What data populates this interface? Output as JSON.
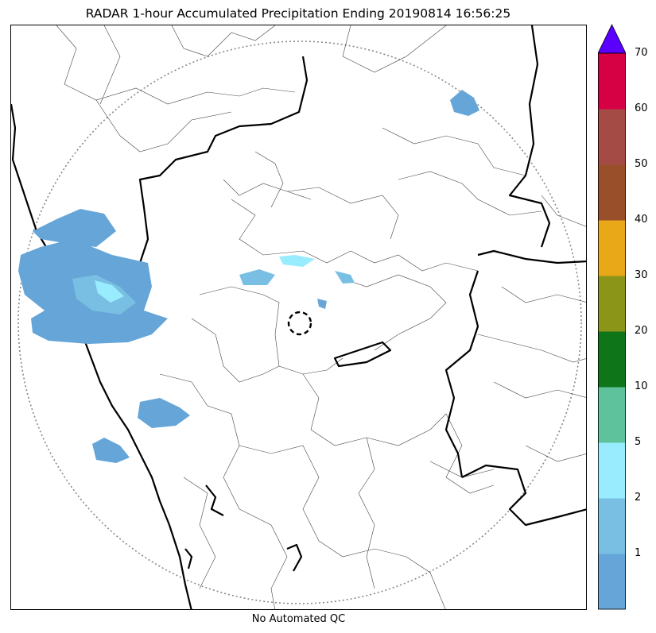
{
  "title": "RADAR 1-hour Accumulated Precipitation Ending 20190814 16:56:25",
  "footer_note": "No Automated QC",
  "colorbar": {
    "ticks": [
      "1",
      "2",
      "5",
      "10",
      "20",
      "30",
      "40",
      "50",
      "60",
      "70"
    ],
    "bins": [
      {
        "color": "#65a5d7"
      },
      {
        "color": "#78bfe3"
      },
      {
        "color": "#98ecfd"
      },
      {
        "color": "#5ec39c"
      },
      {
        "color": "#0e7519"
      },
      {
        "color": "#8b9518"
      },
      {
        "color": "#e9a818"
      },
      {
        "color": "#984f2a"
      },
      {
        "color": "#a54b45"
      },
      {
        "color": "#d60045"
      }
    ],
    "extend_color": "#5a00ff"
  },
  "map_style": {
    "coastline_color": "#000000",
    "district_color": "#444444",
    "range_ring_color": "#888888",
    "radar_marker": "dashed-circle"
  }
}
